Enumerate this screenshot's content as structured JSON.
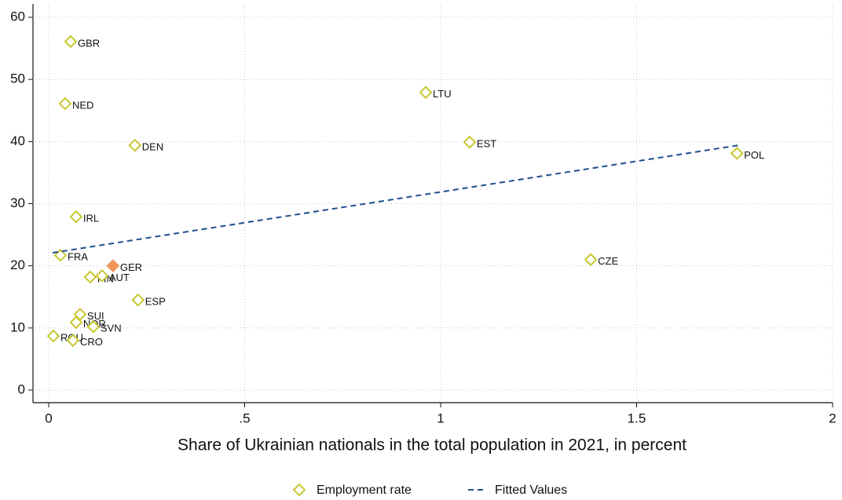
{
  "chart_data": {
    "type": "scatter",
    "xlabel": "Share of Ukrainian nationals in the total population in 2021, in percent",
    "xlim": [
      0,
      2
    ],
    "xticks": [
      0,
      {
        "value": 0.5,
        "label": ".5"
      },
      1,
      {
        "value": 1.5,
        "label": "1.5"
      },
      2
    ],
    "ylim": [
      0,
      60
    ],
    "yticks": [
      0,
      10,
      20,
      30,
      40,
      50,
      60
    ],
    "grid": true,
    "legend": "bottom",
    "series": [
      {
        "name": "Employment rate",
        "type": "scatter",
        "color": "#c8c832",
        "highlight_index": 5,
        "highlight_color": "#f0965a",
        "labels": [
          "GBR",
          "NED",
          "DEN",
          "IRL",
          "FRA",
          "GER",
          "FIN",
          "AUT",
          "ESP",
          "SUI",
          "NOR",
          "SVN",
          "ROU",
          "CRO",
          "LTU",
          "EST",
          "CZE",
          "POL"
        ],
        "x": [
          0.056,
          0.042,
          0.22,
          0.07,
          0.03,
          0.164,
          0.106,
          0.136,
          0.228,
          0.08,
          0.07,
          0.114,
          0.012,
          0.062,
          0.962,
          1.074,
          1.383,
          1.756
        ],
        "values": [
          56.1,
          46.1,
          39.4,
          27.9,
          21.7,
          20,
          18.2,
          18.4,
          14.5,
          12.2,
          10.9,
          10.2,
          8.7,
          8.0,
          47.9,
          39.9,
          21.0,
          38.1
        ]
      },
      {
        "name": "Fitted Values",
        "type": "line",
        "color": "#1f4e8c",
        "x": [
          0.01,
          1.76
        ],
        "values": [
          22.1,
          39.4
        ]
      }
    ]
  }
}
